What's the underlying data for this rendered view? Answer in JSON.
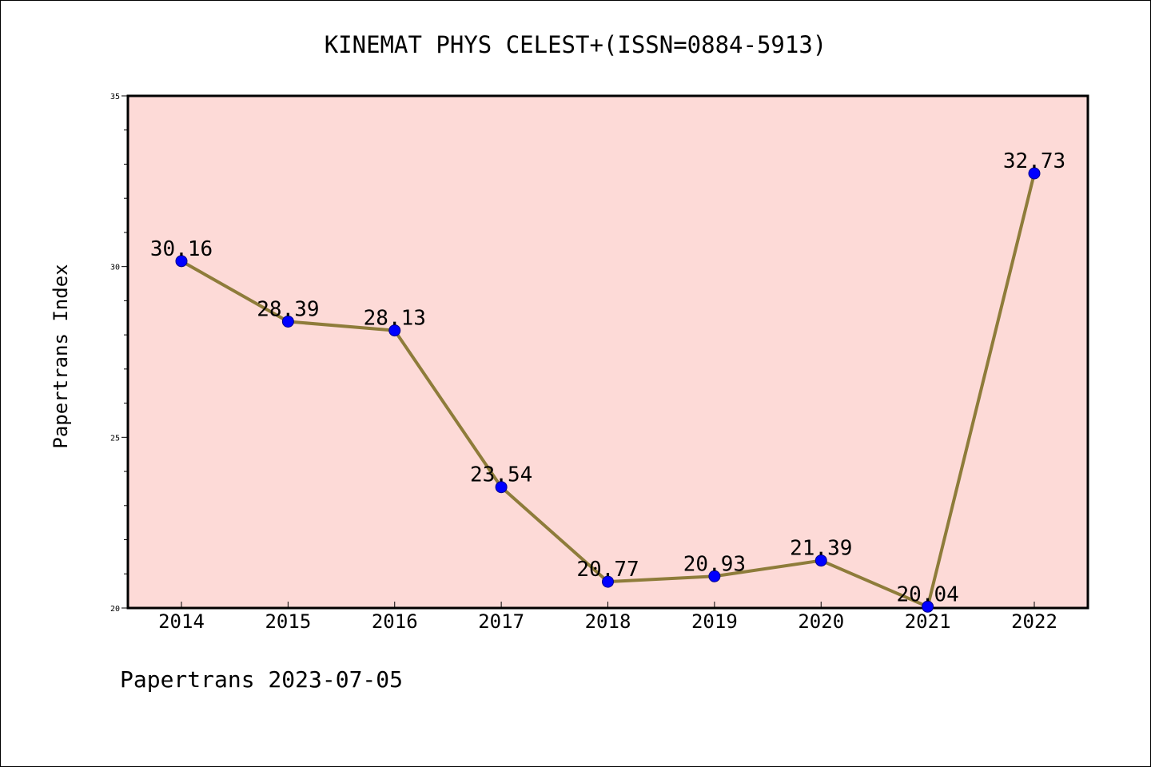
{
  "chart_data": {
    "type": "line",
    "title": "KINEMAT PHYS CELEST+(ISSN=0884-5913)",
    "xlabel": "",
    "ylabel": "Papertrans Index",
    "categories": [
      "2014",
      "2015",
      "2016",
      "2017",
      "2018",
      "2019",
      "2020",
      "2021",
      "2022"
    ],
    "series": [
      {
        "values": [
          30.16,
          28.39,
          28.13,
          23.54,
          20.77,
          20.93,
          21.39,
          20.04,
          32.73
        ],
        "labels": [
          "30.16",
          "28.39",
          "28.13",
          "23.54",
          "20.77",
          "20.93",
          "21.39",
          "20.04",
          "32.73"
        ]
      }
    ],
    "ylim": [
      20,
      35
    ],
    "yticks": [
      "20",
      "25",
      "30",
      "35"
    ],
    "grid": false,
    "legend": "none",
    "colors": {
      "plot_background": "#fddad7",
      "line": "#8e7c3a",
      "marker": "#0000ff"
    }
  },
  "footer": {
    "text": "Papertrans 2023-07-05"
  }
}
